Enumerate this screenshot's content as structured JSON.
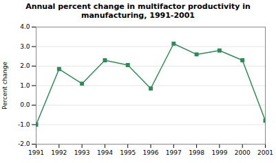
{
  "chart_data": {
    "type": "line",
    "title": "Annual percent change in multifactor productivity in\nmanufacturing, 1991-2001",
    "ylabel": "Percent change",
    "x": [
      1991,
      1992,
      1993,
      1994,
      1995,
      1996,
      1997,
      1998,
      1999,
      2000,
      2001
    ],
    "values": [
      -1.0,
      1.85,
      1.1,
      2.3,
      2.05,
      0.85,
      3.15,
      2.6,
      2.8,
      2.3,
      -0.8
    ],
    "color": "#2e8b57",
    "marker": "square",
    "xlim": [
      1991,
      2001
    ],
    "xticks": [
      1991,
      1992,
      1993,
      1994,
      1995,
      1996,
      1997,
      1998,
      1999,
      2000,
      2001
    ],
    "ylim": [
      -2.0,
      4.0
    ],
    "yticks": [
      {
        "value": -2.0,
        "label": "-2.0"
      },
      {
        "value": -1.0,
        "label": "-1.0"
      },
      {
        "value": 0.0,
        "label": "0.0"
      },
      {
        "value": 1.0,
        "label": "1.0"
      },
      {
        "value": 2.0,
        "label": "2.0"
      },
      {
        "value": 3.0,
        "label": "3.0"
      },
      {
        "value": 4.0,
        "label": "4.0"
      }
    ],
    "grid": true
  }
}
